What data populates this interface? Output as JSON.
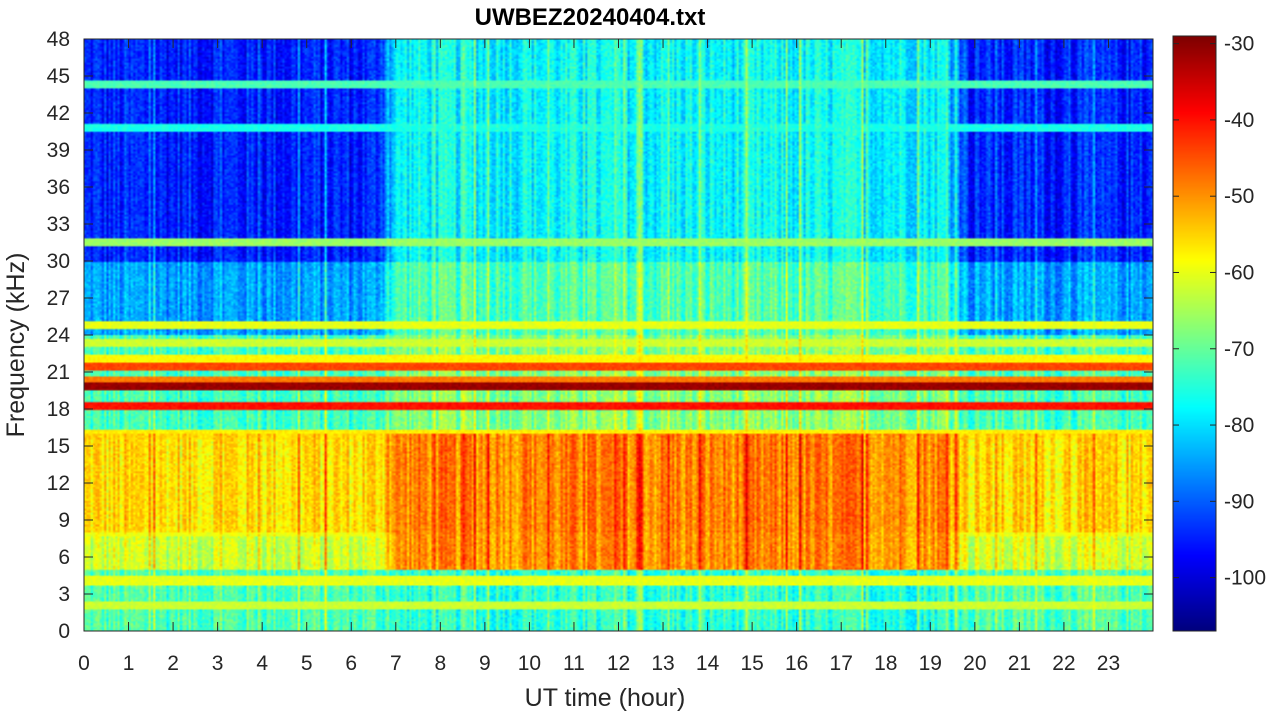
{
  "chart_data": {
    "type": "heatmap",
    "title": "UWBEZ20240404.txt",
    "xlabel": "UT time (hour)",
    "ylabel": "Frequency (kHz)",
    "xlim": [
      0,
      24
    ],
    "ylim": [
      0,
      48
    ],
    "xticks": [
      0,
      1,
      2,
      3,
      4,
      5,
      6,
      7,
      8,
      9,
      10,
      11,
      12,
      13,
      14,
      15,
      16,
      17,
      18,
      19,
      20,
      21,
      22,
      23
    ],
    "yticks": [
      0,
      3,
      6,
      9,
      12,
      15,
      18,
      21,
      24,
      27,
      30,
      33,
      36,
      39,
      42,
      45,
      48
    ],
    "colorbar": {
      "colormap": "jet",
      "clim": [
        -107,
        -29
      ],
      "ticks": [
        -100,
        -90,
        -80,
        -70,
        -60,
        -50,
        -40,
        -30
      ]
    },
    "grid": false,
    "background_levels_dB": [
      {
        "freq_range_kHz": [
          30,
          48
        ],
        "night_level": -95,
        "day_level": -78
      },
      {
        "freq_range_kHz": [
          24,
          30
        ],
        "night_level": -85,
        "day_level": -72
      },
      {
        "freq_range_kHz": [
          16,
          24
        ],
        "night_level": -73,
        "day_level": -68
      },
      {
        "freq_range_kHz": [
          8,
          16
        ],
        "night_level": -56,
        "day_level": -49
      },
      {
        "freq_range_kHz": [
          5,
          8
        ],
        "night_level": -62,
        "day_level": -50
      },
      {
        "freq_range_kHz": [
          0,
          5
        ],
        "night_level": -72,
        "day_level": -75
      }
    ],
    "day_period_hours": [
      6.8,
      19.6
    ],
    "transmitter_lines": [
      {
        "freq_kHz": 19.8,
        "level_dB": -31
      },
      {
        "freq_kHz": 18.2,
        "level_dB": -40
      },
      {
        "freq_kHz": 21.4,
        "level_dB": -44
      },
      {
        "freq_kHz": 20.3,
        "level_dB": -48
      },
      {
        "freq_kHz": 22.1,
        "level_dB": -58
      },
      {
        "freq_kHz": 24.8,
        "level_dB": -60
      },
      {
        "freq_kHz": 23.4,
        "level_dB": -62
      },
      {
        "freq_kHz": 15.9,
        "level_dB": -57
      },
      {
        "freq_kHz": 8.0,
        "level_dB": -60
      },
      {
        "freq_kHz": 4.1,
        "level_dB": -60
      },
      {
        "freq_kHz": 31.5,
        "level_dB": -66
      },
      {
        "freq_kHz": 44.3,
        "level_dB": -72
      },
      {
        "freq_kHz": 40.8,
        "level_dB": -76
      },
      {
        "freq_kHz": 2.1,
        "level_dB": -62
      }
    ]
  }
}
